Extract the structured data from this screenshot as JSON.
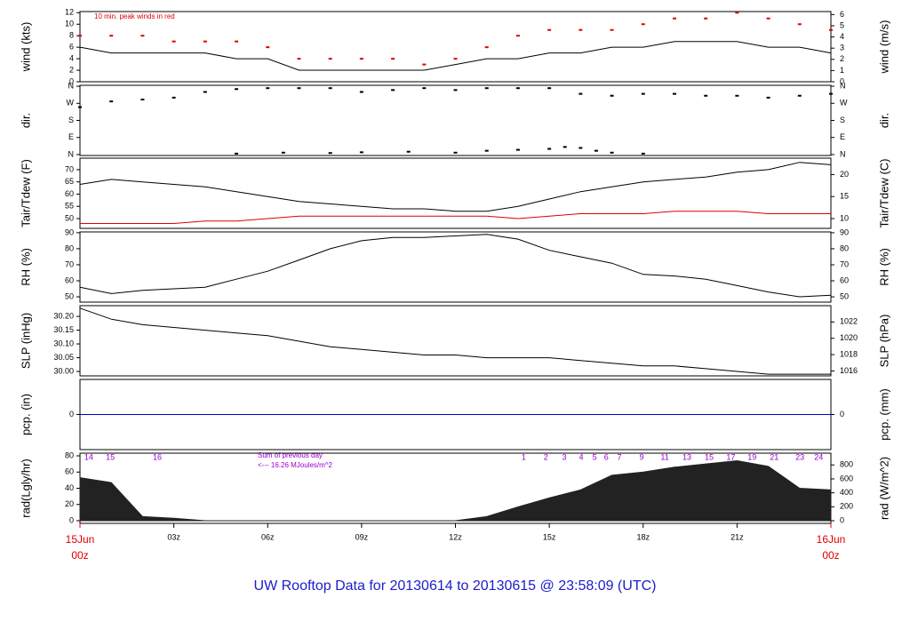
{
  "title": "UW Rooftop Data for 20130614  to  20130615 @ 23:58:09  (UTC)",
  "chart_data": [
    {
      "type": "line",
      "ylabel": "wind (kts)",
      "y2label": "wind (m/s)",
      "ylim": [
        0,
        12.2
      ],
      "yticks": [
        0,
        2,
        4,
        6,
        8,
        10,
        12
      ],
      "y2lim": [
        0,
        6.27
      ],
      "y2ticks": [
        0,
        1,
        2,
        3,
        4,
        5,
        6
      ],
      "annotations": [
        "10 min. peak winds in red"
      ],
      "x": [
        0,
        1,
        2,
        3,
        4,
        5,
        6,
        7,
        8,
        9,
        10,
        11,
        12,
        13,
        14,
        15,
        16,
        17,
        18,
        19,
        20,
        21,
        22,
        23,
        24
      ],
      "series": [
        {
          "color": "#000000",
          "values": [
            6,
            5,
            5,
            5,
            5,
            4,
            4,
            2,
            2,
            2,
            2,
            2,
            3,
            4,
            4,
            5,
            5,
            6,
            6,
            7,
            7,
            7,
            6,
            6,
            5
          ]
        },
        {
          "color": "#e00000",
          "style": "points",
          "values": [
            8,
            8,
            8,
            7,
            7,
            7,
            6,
            4,
            4,
            4,
            4,
            3,
            4,
            6,
            8,
            9,
            9,
            9,
            10,
            11,
            11,
            12,
            11,
            10,
            9
          ]
        }
      ]
    },
    {
      "type": "scatter",
      "ylabel": "dir.",
      "y2label": "dir.",
      "ylim": [
        -5,
        365
      ],
      "yticks": [
        {
          "value": 360,
          "label": "N"
        },
        {
          "value": 270,
          "label": "W"
        },
        {
          "value": 180,
          "label": "S"
        },
        {
          "value": 90,
          "label": "E"
        },
        {
          "value": 0,
          "label": "N"
        }
      ],
      "y2lim": [
        -5,
        365
      ],
      "y2ticks": [
        {
          "value": 360,
          "label": "N"
        },
        {
          "value": 270,
          "label": "W"
        },
        {
          "value": 180,
          "label": "S"
        },
        {
          "value": 90,
          "label": "E"
        },
        {
          "value": 0,
          "label": "N"
        }
      ],
      "series": [
        {
          "color": "#000000",
          "x": [
            0,
            1,
            2,
            3,
            4,
            5,
            6,
            7,
            8,
            9,
            10,
            11,
            12,
            13,
            14,
            15,
            16,
            17,
            18,
            19,
            20,
            21,
            22,
            23,
            24
          ],
          "values": [
            250,
            280,
            290,
            300,
            330,
            345,
            350,
            350,
            350,
            330,
            340,
            350,
            340,
            350,
            350,
            350,
            320,
            310,
            320,
            320,
            310,
            310,
            300,
            310,
            320
          ]
        },
        {
          "color": "#000000",
          "x": [
            5,
            6.5,
            8,
            9,
            10.5,
            12,
            13,
            14,
            15,
            15.5,
            16,
            16.5,
            17,
            18
          ],
          "values": [
            5,
            10,
            8,
            12,
            15,
            10,
            20,
            25,
            30,
            40,
            35,
            20,
            10,
            5
          ]
        }
      ]
    },
    {
      "type": "line",
      "ylabel": "Tair/Tdew (F)",
      "y2label": "Tair/Tdew (C)",
      "ylim": [
        46,
        74.7
      ],
      "yticks": [
        50,
        55,
        60,
        65,
        70
      ],
      "y2lim": [
        7.78,
        23.72
      ],
      "y2ticks": [
        10,
        15,
        20
      ],
      "x": [
        0,
        1,
        2,
        3,
        4,
        5,
        6,
        7,
        8,
        9,
        10,
        11,
        12,
        13,
        14,
        15,
        16,
        17,
        18,
        19,
        20,
        21,
        22,
        23,
        24
      ],
      "series": [
        {
          "color": "#000000",
          "values": [
            64,
            66,
            65,
            64,
            63,
            61,
            59,
            57,
            56,
            55,
            54,
            54,
            53,
            53,
            55,
            58,
            61,
            63,
            65,
            66,
            67,
            69,
            70,
            73,
            72
          ]
        },
        {
          "color": "#e00000",
          "values": [
            48,
            48,
            48,
            48,
            49,
            49,
            50,
            51,
            51,
            51,
            51,
            51,
            51,
            51,
            50,
            51,
            52,
            52,
            52,
            53,
            53,
            53,
            52,
            52,
            52
          ]
        }
      ]
    },
    {
      "type": "line",
      "ylabel": "RH (%)",
      "y2label": "RH (%)",
      "ylim": [
        46.7,
        90.5
      ],
      "yticks": [
        50,
        60,
        70,
        80,
        90
      ],
      "y2lim": [
        46.7,
        90.5
      ],
      "y2ticks": [
        50,
        60,
        70,
        80,
        90
      ],
      "x": [
        0,
        1,
        2,
        3,
        4,
        5,
        6,
        7,
        8,
        9,
        10,
        11,
        12,
        13,
        14,
        15,
        16,
        17,
        18,
        19,
        20,
        21,
        22,
        23,
        24
      ],
      "series": [
        {
          "color": "#000000",
          "values": [
            56,
            52,
            54,
            55,
            56,
            61,
            66,
            73,
            80,
            85,
            87,
            87,
            88,
            89,
            86,
            79,
            75,
            71,
            64,
            63,
            61,
            57,
            53,
            50,
            51
          ]
        }
      ]
    },
    {
      "type": "line",
      "ylabel": "SLP (inHg)",
      "y2label": "SLP (hPa)",
      "ylim": [
        29.984,
        30.239
      ],
      "yticks": [
        {
          "value": 30.0,
          "label": "30.00"
        },
        {
          "value": 30.05,
          "label": "30.05"
        },
        {
          "value": 30.1,
          "label": "30.10"
        },
        {
          "value": 30.15,
          "label": "30.15"
        },
        {
          "value": 30.2,
          "label": "30.20"
        }
      ],
      "y2lim": [
        1015.4,
        1024.0
      ],
      "y2ticks": [
        1016,
        1018,
        1020,
        1022
      ],
      "x": [
        0,
        1,
        2,
        3,
        4,
        5,
        6,
        7,
        8,
        9,
        10,
        11,
        12,
        13,
        14,
        15,
        16,
        17,
        18,
        19,
        20,
        21,
        22,
        23,
        24
      ],
      "series": [
        {
          "color": "#000000",
          "values": [
            30.23,
            30.19,
            30.17,
            30.16,
            30.15,
            30.14,
            30.13,
            30.11,
            30.09,
            30.08,
            30.07,
            30.06,
            30.06,
            30.05,
            30.05,
            30.05,
            30.04,
            30.03,
            30.02,
            30.02,
            30.01,
            30.0,
            29.99,
            29.99,
            29.99
          ]
        }
      ]
    },
    {
      "type": "line",
      "ylabel": "pcp. (in)",
      "y2label": "pcp. (mm)",
      "ylim": [
        -1,
        1
      ],
      "yticks": [
        0
      ],
      "y2lim": [
        -25.4,
        25.4
      ],
      "y2ticks": [
        0
      ],
      "x": [
        0,
        1,
        2,
        3,
        4,
        5,
        6,
        7,
        8,
        9,
        10,
        11,
        12,
        13,
        14,
        15,
        16,
        17,
        18,
        19,
        20,
        21,
        22,
        23,
        24
      ],
      "series": [
        {
          "color": "#0000cc",
          "values": [
            0,
            0,
            0,
            0,
            0,
            0,
            0,
            0,
            0,
            0,
            0,
            0,
            0,
            0,
            0,
            0,
            0,
            0,
            0,
            0,
            0,
            0,
            0,
            0,
            0
          ]
        }
      ]
    },
    {
      "type": "area",
      "ylabel": "rad(Lgly/hr)",
      "y2label": "rad (W/m^2)",
      "ylim": [
        -3.3,
        83.3
      ],
      "yticks": [
        0,
        20,
        40,
        60,
        80
      ],
      "y2lim": [
        -38,
        969
      ],
      "y2ticks": [
        0,
        200,
        400,
        600,
        800
      ],
      "annotations": [
        "Sum of previous day",
        "<--- 16.26 MJoules/m^2"
      ],
      "hour_labels": {
        "x": [
          0.28,
          0.97,
          2.47,
          14.18,
          14.89,
          15.48,
          16.02,
          16.45,
          16.82,
          17.24,
          17.95,
          18.69,
          19.4,
          20.11,
          20.8,
          21.48,
          22.19,
          23.01,
          23.61
        ],
        "labels": [
          "14",
          "15",
          "16",
          "1",
          "2",
          "3",
          "4",
          "5",
          "6",
          "7",
          "9",
          "11",
          "13",
          "15",
          "17",
          "19",
          "21",
          "23",
          "24"
        ]
      },
      "xlim": [
        0,
        24
      ],
      "xticks": [
        {
          "value": 0,
          "label": "15Jun"
        },
        {
          "value": 3,
          "label": "03z"
        },
        {
          "value": 6,
          "label": "06z"
        },
        {
          "value": 9,
          "label": "09z"
        },
        {
          "value": 12,
          "label": "12z"
        },
        {
          "value": 15,
          "label": "15z"
        },
        {
          "value": 18,
          "label": "18z"
        },
        {
          "value": 21,
          "label": "21z"
        },
        {
          "value": 24,
          "label": "16Jun"
        }
      ],
      "x_sublabels": [
        {
          "value": 0,
          "label": "00z"
        },
        {
          "value": 24,
          "label": "00z"
        }
      ],
      "x": [
        0,
        1,
        2,
        3,
        4,
        5,
        6,
        7,
        8,
        9,
        10,
        11,
        12,
        13,
        14,
        15,
        16,
        17,
        18,
        19,
        20,
        21,
        22,
        23,
        24
      ],
      "series": [
        {
          "color": "#222222",
          "values": [
            53,
            47,
            5,
            3,
            0,
            0,
            0,
            0,
            0,
            0,
            0,
            0,
            0,
            5,
            17,
            28,
            38,
            56,
            60,
            66,
            70,
            74,
            67,
            40,
            38
          ]
        }
      ]
    }
  ]
}
